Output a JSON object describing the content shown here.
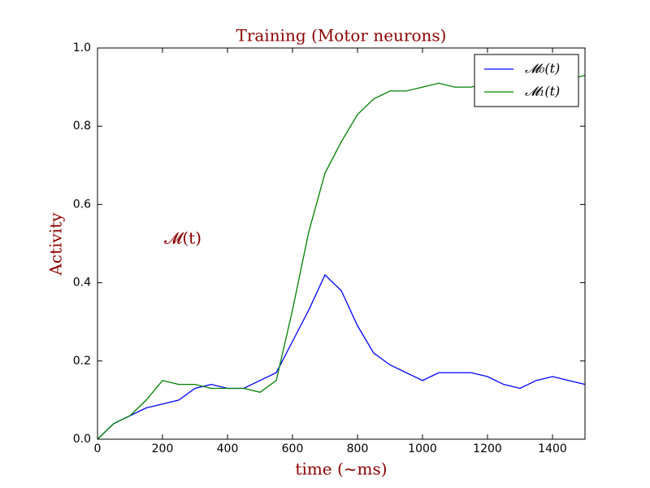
{
  "chart_data": {
    "type": "line",
    "title": "Training (Motor neurons)",
    "x_label": "time (~ms)",
    "y_label": "Activity",
    "annotation": "𝓜(t)",
    "x": [
      0,
      50,
      100,
      150,
      200,
      250,
      300,
      350,
      400,
      450,
      500,
      550,
      600,
      650,
      700,
      750,
      800,
      850,
      900,
      950,
      1000,
      1050,
      1100,
      1150,
      1200,
      1250,
      1300,
      1350,
      1400,
      1450,
      1500
    ],
    "series": [
      {
        "name": "𝓜₀(t)",
        "color": "#0000ff",
        "values": [
          0.0,
          0.04,
          0.06,
          0.08,
          0.09,
          0.1,
          0.13,
          0.14,
          0.13,
          0.13,
          0.15,
          0.17,
          0.25,
          0.33,
          0.42,
          0.38,
          0.29,
          0.22,
          0.19,
          0.17,
          0.15,
          0.17,
          0.17,
          0.17,
          0.16,
          0.14,
          0.13,
          0.15,
          0.16,
          0.15,
          0.14
        ]
      },
      {
        "name": "𝓜₁(t)",
        "color": "#008000",
        "values": [
          0.0,
          0.04,
          0.06,
          0.1,
          0.15,
          0.14,
          0.14,
          0.13,
          0.13,
          0.13,
          0.12,
          0.15,
          0.33,
          0.53,
          0.68,
          0.76,
          0.83,
          0.87,
          0.89,
          0.89,
          0.9,
          0.91,
          0.9,
          0.9,
          0.91,
          0.9,
          0.9,
          0.91,
          0.91,
          0.92,
          0.93
        ]
      }
    ],
    "xlim": [
      0,
      1500
    ],
    "xticks": [
      0,
      200,
      400,
      600,
      800,
      1000,
      1200,
      1400
    ],
    "ylim": [
      0,
      1
    ],
    "yticks": [
      {
        "value": 0,
        "label": "0.0"
      },
      0.2,
      0.4,
      0.6,
      0.8,
      {
        "value": 1,
        "label": "1.0"
      }
    ],
    "legend": "upper right",
    "text_color": "#8b0000"
  }
}
